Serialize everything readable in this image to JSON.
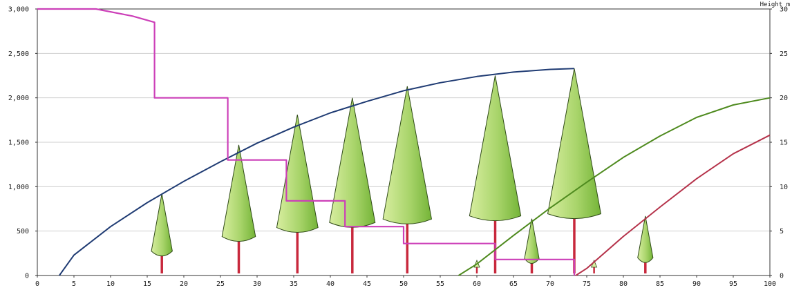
{
  "chart_data": {
    "type": "line",
    "x_ticks": [
      "0",
      "5",
      "10",
      "15",
      "20",
      "25",
      "30",
      "35",
      "40",
      "45",
      "50",
      "55",
      "60",
      "65",
      "70",
      "75",
      "80",
      "85",
      "90",
      "95",
      "100"
    ],
    "y_left_ticks": [
      "0",
      "500",
      "1,000",
      "1,500",
      "2,000",
      "2,500",
      "3,000"
    ],
    "y_right_ticks": [
      "0",
      "5",
      "10",
      "15",
      "20",
      "25",
      "30"
    ],
    "top_right_label": "Height m",
    "xlim": [
      0,
      100
    ],
    "ylim_left": [
      0,
      3000
    ],
    "ylim_right": [
      0,
      30
    ],
    "grid": "horizontal",
    "colors": {
      "blue_curve": "#1f3b73",
      "magenta_step": "#cc3fb8",
      "green_curve": "#4e8a1e",
      "red_curve": "#b5324a",
      "tree_crown_light": "#d8eea0",
      "tree_crown_dark": "#74b437",
      "trunk": "#c8283c"
    },
    "series": [
      {
        "axis": "right",
        "x": [
          3,
          5,
          10,
          15,
          20,
          25,
          30,
          35,
          40,
          45,
          50,
          55,
          60,
          65,
          70,
          73.3
        ],
        "values": [
          0,
          2.3,
          5.5,
          8.2,
          10.6,
          12.8,
          14.9,
          16.7,
          18.3,
          19.6,
          20.8,
          21.7,
          22.4,
          22.9,
          23.2,
          23.3
        ]
      },
      {
        "axis": "left",
        "step": true,
        "x": [
          0,
          8,
          13,
          16,
          16,
          26,
          26,
          34,
          34,
          42,
          42,
          50,
          50,
          62.5,
          62.5,
          73.3,
          73.3
        ],
        "values": [
          3000,
          3000,
          2920,
          2850,
          2000,
          2000,
          1300,
          1300,
          840,
          840,
          550,
          550,
          360,
          360,
          180,
          180,
          0
        ]
      },
      {
        "axis": "right",
        "x": [
          57.5,
          60,
          65,
          70,
          75,
          80,
          85,
          90,
          95,
          100
        ],
        "values": [
          0,
          1.3,
          4.5,
          7.6,
          10.5,
          13.3,
          15.7,
          17.8,
          19.2,
          20
        ]
      },
      {
        "axis": "right",
        "x": [
          73.5,
          75,
          80,
          85,
          90,
          95,
          100
        ],
        "values": [
          0,
          0.8,
          4.4,
          7.7,
          10.9,
          13.7,
          15.8
        ]
      }
    ],
    "trees": [
      {
        "x": 17,
        "height": 9.2
      },
      {
        "x": 27.5,
        "height": 14.7
      },
      {
        "x": 35.5,
        "height": 18.1
      },
      {
        "x": 43,
        "height": 20.0
      },
      {
        "x": 50.5,
        "height": 21.3
      },
      {
        "x": 62.5,
        "height": 22.5
      },
      {
        "x": 67.5,
        "height": 6.4
      },
      {
        "x": 73.3,
        "height": 23.3
      },
      {
        "x": 83,
        "height": 6.7
      }
    ],
    "seedlings": [
      {
        "x": 60
      },
      {
        "x": 76
      }
    ]
  }
}
